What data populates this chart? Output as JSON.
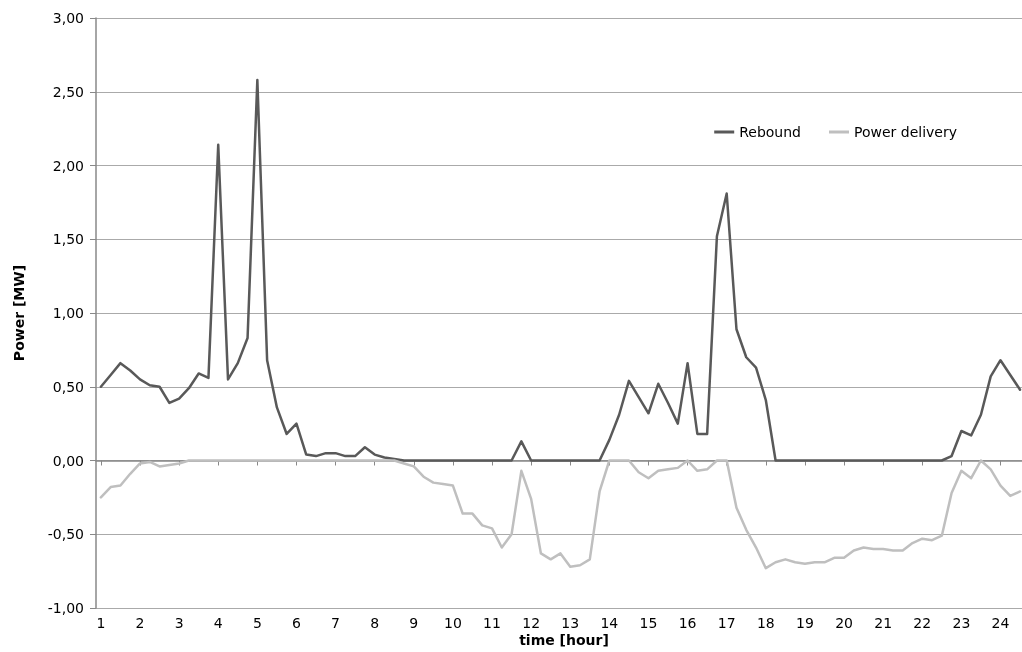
{
  "chart_data": {
    "type": "line",
    "xlabel": "time [hour]",
    "ylabel": "Power [MW]",
    "x": [
      1,
      1.25,
      1.5,
      1.75,
      2,
      2.25,
      2.5,
      2.75,
      3,
      3.25,
      3.5,
      3.75,
      4,
      4.25,
      4.5,
      4.75,
      5,
      5.25,
      5.5,
      5.75,
      6,
      6.25,
      6.5,
      6.75,
      7,
      7.25,
      7.5,
      7.75,
      8,
      8.25,
      8.5,
      8.75,
      9,
      9.25,
      9.5,
      9.75,
      10,
      10.25,
      10.5,
      10.75,
      11,
      11.25,
      11.5,
      11.75,
      12,
      12.25,
      12.5,
      12.75,
      13,
      13.25,
      13.5,
      13.75,
      14,
      14.25,
      14.5,
      14.75,
      15,
      15.25,
      15.5,
      15.75,
      16,
      16.25,
      16.5,
      16.75,
      17,
      17.25,
      17.5,
      17.75,
      18,
      18.25,
      18.5,
      18.75,
      19,
      19.25,
      19.5,
      19.75,
      20,
      20.25,
      20.5,
      20.75,
      21,
      21.25,
      21.5,
      21.75,
      22,
      22.25,
      22.5,
      22.75,
      23,
      23.25,
      23.5,
      23.75,
      24,
      24.25,
      24.5
    ],
    "series": [
      {
        "name": "Rebound",
        "color": "#595959",
        "values": [
          0.5,
          0.58,
          0.66,
          0.61,
          0.55,
          0.51,
          0.5,
          0.39,
          0.42,
          0.49,
          0.59,
          0.56,
          2.14,
          0.55,
          0.66,
          0.83,
          2.58,
          0.68,
          0.36,
          0.18,
          0.25,
          0.04,
          0.03,
          0.05,
          0.05,
          0.03,
          0.03,
          0.09,
          0.04,
          0.02,
          0.01,
          0,
          0,
          0,
          0,
          0,
          0,
          0,
          0,
          0,
          0,
          0,
          0,
          0.13,
          0,
          0,
          0,
          0,
          0,
          0,
          0,
          0,
          0.14,
          0.31,
          0.54,
          0.43,
          0.32,
          0.52,
          0.39,
          0.25,
          0.66,
          0.18,
          0.18,
          1.52,
          1.81,
          0.89,
          0.7,
          0.63,
          0.41,
          0,
          0,
          0,
          0,
          0,
          0,
          0,
          0,
          0,
          0,
          0,
          0,
          0,
          0,
          0,
          0,
          0,
          0,
          0.03,
          0.2,
          0.17,
          0.31,
          0.57,
          0.68,
          0.58,
          0.48
        ]
      },
      {
        "name": "Power delivery",
        "color": "#bfbfbf",
        "values": [
          -0.25,
          -0.18,
          -0.17,
          -0.09,
          -0.02,
          -0.01,
          -0.04,
          -0.03,
          -0.02,
          0,
          0,
          0,
          0,
          0,
          0,
          0,
          0,
          0,
          0,
          0,
          0,
          0,
          0,
          0,
          0,
          0,
          0,
          0,
          0,
          0,
          0,
          -0.02,
          -0.04,
          -0.11,
          -0.15,
          -0.16,
          -0.17,
          -0.36,
          -0.36,
          -0.44,
          -0.46,
          -0.59,
          -0.5,
          -0.07,
          -0.26,
          -0.63,
          -0.67,
          -0.63,
          -0.72,
          -0.71,
          -0.67,
          -0.21,
          0,
          0,
          0,
          -0.08,
          -0.12,
          -0.07,
          -0.06,
          -0.05,
          0,
          -0.07,
          -0.06,
          0,
          0,
          -0.32,
          -0.47,
          -0.59,
          -0.73,
          -0.69,
          -0.67,
          -0.69,
          -0.7,
          -0.69,
          -0.69,
          -0.66,
          -0.66,
          -0.61,
          -0.59,
          -0.6,
          -0.6,
          -0.61,
          -0.61,
          -0.56,
          -0.53,
          -0.54,
          -0.51,
          -0.22,
          -0.07,
          -0.12,
          0,
          -0.06,
          -0.17,
          -0.24,
          -0.21
        ]
      }
    ],
    "xlim": [
      0.875,
      24.55
    ],
    "xticks": [
      1,
      2,
      3,
      4,
      5,
      6,
      7,
      8,
      9,
      10,
      11,
      12,
      13,
      14,
      15,
      16,
      17,
      18,
      19,
      20,
      21,
      22,
      23,
      24
    ],
    "ylim": [
      -1,
      3
    ],
    "yticks": [
      {
        "value": -1,
        "label": "-1,00"
      },
      {
        "value": -0.5,
        "label": "-0,50"
      },
      {
        "value": 0,
        "label": "0,00"
      },
      {
        "value": 0.5,
        "label": "0,50"
      },
      {
        "value": 1,
        "label": "1,00"
      },
      {
        "value": 1.5,
        "label": "1,50"
      },
      {
        "value": 2,
        "label": "2,00"
      },
      {
        "value": 2.5,
        "label": "2,50"
      },
      {
        "value": 3,
        "label": "3,00"
      }
    ],
    "grid": "y",
    "legend": "top right",
    "marker": "none",
    "line_style": "solid"
  }
}
